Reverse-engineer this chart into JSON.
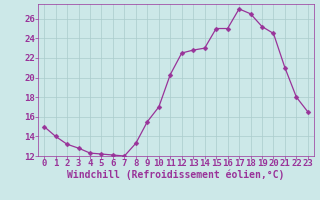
{
  "x": [
    0,
    1,
    2,
    3,
    4,
    5,
    6,
    7,
    8,
    9,
    10,
    11,
    12,
    13,
    14,
    15,
    16,
    17,
    18,
    19,
    20,
    21,
    22,
    23
  ],
  "y": [
    15.0,
    14.0,
    13.2,
    12.8,
    12.3,
    12.2,
    12.1,
    12.0,
    13.3,
    15.5,
    17.0,
    20.3,
    22.5,
    22.8,
    23.0,
    25.0,
    25.0,
    27.0,
    26.5,
    25.2,
    24.5,
    21.0,
    18.0,
    16.5
  ],
  "line_color": "#993399",
  "marker": "D",
  "marker_size": 2.5,
  "bg_color": "#cce8e8",
  "grid_color": "#aacccc",
  "xlabel": "Windchill (Refroidissement éolien,°C)",
  "ylim": [
    12,
    27
  ],
  "xlim": [
    -0.5,
    23.5
  ],
  "yticks": [
    12,
    14,
    16,
    18,
    20,
    22,
    24,
    26
  ],
  "xticks": [
    0,
    1,
    2,
    3,
    4,
    5,
    6,
    7,
    8,
    9,
    10,
    11,
    12,
    13,
    14,
    15,
    16,
    17,
    18,
    19,
    20,
    21,
    22,
    23
  ],
  "tick_color": "#993399",
  "label_color": "#993399",
  "font_size": 6.5,
  "xlabel_fontsize": 7,
  "linewidth": 0.9
}
